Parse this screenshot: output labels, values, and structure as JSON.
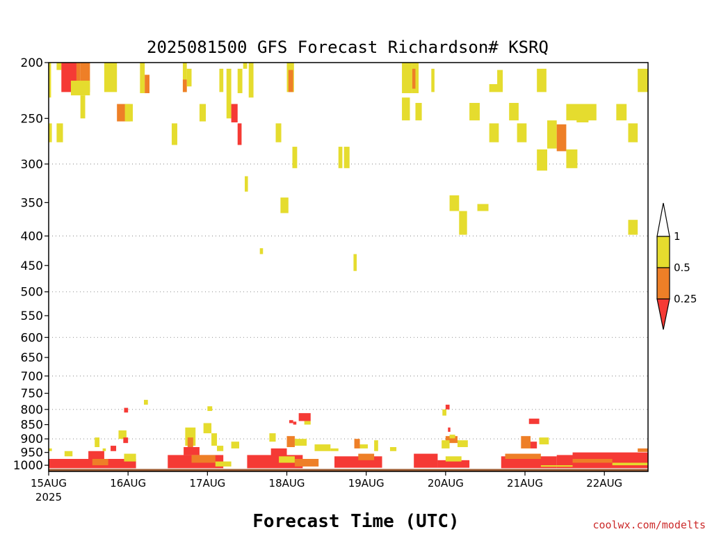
{
  "chart_data": {
    "type": "heatmap",
    "title": "2025081500 GFS Forecast Richardson# KSRQ",
    "xlabel": "Forecast Time (UTC)",
    "ylabel": "",
    "credit": "coolwx.com/modelts",
    "x_ticks": [
      {
        "day": 0,
        "label": "15AUG",
        "sublabel": "2025"
      },
      {
        "day": 1,
        "label": "16AUG",
        "sublabel": ""
      },
      {
        "day": 2,
        "label": "17AUG",
        "sublabel": ""
      },
      {
        "day": 3,
        "label": "18AUG",
        "sublabel": ""
      },
      {
        "day": 4,
        "label": "19AUG",
        "sublabel": ""
      },
      {
        "day": 5,
        "label": "20AUG",
        "sublabel": ""
      },
      {
        "day": 6,
        "label": "21AUG",
        "sublabel": ""
      },
      {
        "day": 7,
        "label": "22AUG",
        "sublabel": ""
      }
    ],
    "xlim_days": [
      0,
      7.55
    ],
    "y_scale": "log",
    "ylim_hpa": [
      200,
      1025
    ],
    "y_ticks": [
      "200",
      "250",
      "300",
      "350",
      "400",
      "450",
      "500",
      "550",
      "600",
      "650",
      "700",
      "750",
      "800",
      "850",
      "900",
      "950",
      "1000"
    ],
    "grid_levels": [
      300,
      400,
      500,
      600,
      700,
      800,
      900
    ],
    "grid": "dotted horizontal",
    "colorbar": {
      "placement": "right",
      "labels": [
        "1",
        "0.5",
        "0.25"
      ],
      "bins": [
        {
          "range": "0.5-1",
          "color": "#e5dc2e"
        },
        {
          "range": "0.25-0.5",
          "color": "#ee7f27"
        },
        {
          "range": "<0.25",
          "color": "#f53a35"
        }
      ]
    },
    "colors": {
      "yellow": "#e5dc2e",
      "orange": "#ee7f27",
      "red": "#f53a35",
      "ground": "#9b5a30"
    },
    "ground_level_hpa": 1015,
    "cells": [
      {
        "t0": 0.0,
        "t1": 0.03,
        "p0": 200,
        "p1": 230,
        "c": "yellow"
      },
      {
        "t0": 0.1,
        "t1": 0.16,
        "p0": 200,
        "p1": 206,
        "c": "yellow"
      },
      {
        "t0": 0.16,
        "t1": 0.35,
        "p0": 200,
        "p1": 225,
        "c": "red"
      },
      {
        "t0": 0.35,
        "t1": 0.4,
        "p0": 200,
        "p1": 225,
        "c": "orange"
      },
      {
        "t0": 0.4,
        "t1": 0.52,
        "p0": 200,
        "p1": 225,
        "c": "orange"
      },
      {
        "t0": 0.28,
        "t1": 0.52,
        "p0": 215,
        "p1": 228,
        "c": "yellow"
      },
      {
        "t0": 0.4,
        "t1": 0.46,
        "p0": 228,
        "p1": 250,
        "c": "yellow"
      },
      {
        "t0": 0.7,
        "t1": 0.86,
        "p0": 200,
        "p1": 225,
        "c": "yellow"
      },
      {
        "t0": 0.86,
        "t1": 1.03,
        "p0": 236,
        "p1": 253,
        "c": "orange"
      },
      {
        "t0": 0.96,
        "t1": 1.06,
        "p0": 236,
        "p1": 253,
        "c": "yellow"
      },
      {
        "t0": 1.15,
        "t1": 1.21,
        "p0": 200,
        "p1": 226,
        "c": "yellow"
      },
      {
        "t0": 1.21,
        "t1": 1.27,
        "p0": 210,
        "p1": 226,
        "c": "orange"
      },
      {
        "t0": 1.69,
        "t1": 1.74,
        "p0": 200,
        "p1": 225,
        "c": "yellow"
      },
      {
        "t0": 1.69,
        "t1": 1.74,
        "p0": 214,
        "p1": 225,
        "c": "orange"
      },
      {
        "t0": 1.74,
        "t1": 1.8,
        "p0": 205,
        "p1": 220,
        "c": "yellow"
      },
      {
        "t0": 1.9,
        "t1": 1.98,
        "p0": 236,
        "p1": 253,
        "c": "yellow"
      },
      {
        "t0": 2.15,
        "t1": 2.2,
        "p0": 205,
        "p1": 225,
        "c": "yellow"
      },
      {
        "t0": 2.24,
        "t1": 2.3,
        "p0": 205,
        "p1": 250,
        "c": "yellow"
      },
      {
        "t0": 2.3,
        "t1": 2.38,
        "p0": 236,
        "p1": 254,
        "c": "red"
      },
      {
        "t0": 2.38,
        "t1": 2.44,
        "p0": 205,
        "p1": 226,
        "c": "yellow"
      },
      {
        "t0": 2.45,
        "t1": 2.5,
        "p0": 200,
        "p1": 205,
        "c": "yellow"
      },
      {
        "t0": 2.38,
        "t1": 2.43,
        "p0": 255,
        "p1": 278,
        "c": "red"
      },
      {
        "t0": 2.52,
        "t1": 2.58,
        "p0": 200,
        "p1": 230,
        "c": "yellow"
      },
      {
        "t0": 3.0,
        "t1": 3.09,
        "p0": 200,
        "p1": 225,
        "c": "yellow"
      },
      {
        "t0": 3.02,
        "t1": 3.08,
        "p0": 206,
        "p1": 225,
        "c": "orange"
      },
      {
        "t0": 2.86,
        "t1": 2.93,
        "p0": 255,
        "p1": 275,
        "c": "yellow"
      },
      {
        "t0": 3.07,
        "t1": 3.13,
        "p0": 280,
        "p1": 305,
        "c": "yellow"
      },
      {
        "t0": 2.92,
        "t1": 3.02,
        "p0": 343,
        "p1": 365,
        "c": "yellow"
      },
      {
        "t0": 1.55,
        "t1": 1.62,
        "p0": 255,
        "p1": 278,
        "c": "yellow"
      },
      {
        "t0": 0.1,
        "t1": 0.18,
        "p0": 255,
        "p1": 275,
        "c": "yellow"
      },
      {
        "t0": 0.0,
        "t1": 0.04,
        "p0": 255,
        "p1": 275,
        "c": "yellow"
      },
      {
        "t0": 2.47,
        "t1": 2.51,
        "p0": 315,
        "p1": 335,
        "c": "yellow"
      },
      {
        "t0": 2.66,
        "t1": 2.7,
        "p0": 420,
        "p1": 430,
        "c": "yellow"
      },
      {
        "t0": 3.65,
        "t1": 3.7,
        "p0": 280,
        "p1": 305,
        "c": "yellow"
      },
      {
        "t0": 3.72,
        "t1": 3.79,
        "p0": 280,
        "p1": 305,
        "c": "yellow"
      },
      {
        "t0": 3.84,
        "t1": 3.88,
        "p0": 430,
        "p1": 460,
        "c": "yellow"
      },
      {
        "t0": 4.45,
        "t1": 4.58,
        "p0": 200,
        "p1": 226,
        "c": "yellow"
      },
      {
        "t0": 4.58,
        "t1": 4.66,
        "p0": 200,
        "p1": 226,
        "c": "yellow"
      },
      {
        "t0": 4.58,
        "t1": 4.62,
        "p0": 205,
        "p1": 222,
        "c": "orange"
      },
      {
        "t0": 4.45,
        "t1": 4.55,
        "p0": 230,
        "p1": 252,
        "c": "yellow"
      },
      {
        "t0": 4.62,
        "t1": 4.7,
        "p0": 235,
        "p1": 252,
        "c": "yellow"
      },
      {
        "t0": 4.82,
        "t1": 4.86,
        "p0": 205,
        "p1": 225,
        "c": "yellow"
      },
      {
        "t0": 5.05,
        "t1": 5.17,
        "p0": 340,
        "p1": 362,
        "c": "yellow"
      },
      {
        "t0": 5.17,
        "t1": 5.27,
        "p0": 362,
        "p1": 398,
        "c": "yellow"
      },
      {
        "t0": 5.4,
        "t1": 5.54,
        "p0": 352,
        "p1": 362,
        "c": "yellow"
      },
      {
        "t0": 5.3,
        "t1": 5.43,
        "p0": 235,
        "p1": 252,
        "c": "yellow"
      },
      {
        "t0": 5.55,
        "t1": 5.72,
        "p0": 218,
        "p1": 225,
        "c": "yellow"
      },
      {
        "t0": 5.65,
        "t1": 5.72,
        "p0": 206,
        "p1": 222,
        "c": "yellow"
      },
      {
        "t0": 5.55,
        "t1": 5.67,
        "p0": 255,
        "p1": 275,
        "c": "yellow"
      },
      {
        "t0": 5.8,
        "t1": 5.92,
        "p0": 235,
        "p1": 252,
        "c": "yellow"
      },
      {
        "t0": 5.9,
        "t1": 6.02,
        "p0": 255,
        "p1": 275,
        "c": "yellow"
      },
      {
        "t0": 6.15,
        "t1": 6.27,
        "p0": 205,
        "p1": 225,
        "c": "yellow"
      },
      {
        "t0": 6.15,
        "t1": 6.28,
        "p0": 283,
        "p1": 308,
        "c": "yellow"
      },
      {
        "t0": 6.28,
        "t1": 6.4,
        "p0": 252,
        "p1": 282,
        "c": "yellow"
      },
      {
        "t0": 6.4,
        "t1": 6.52,
        "p0": 256,
        "p1": 285,
        "c": "orange"
      },
      {
        "t0": 6.52,
        "t1": 6.66,
        "p0": 283,
        "p1": 305,
        "c": "yellow"
      },
      {
        "t0": 6.52,
        "t1": 6.9,
        "p0": 236,
        "p1": 252,
        "c": "yellow"
      },
      {
        "t0": 6.65,
        "t1": 6.8,
        "p0": 250,
        "p1": 254,
        "c": "yellow"
      },
      {
        "t0": 7.15,
        "t1": 7.28,
        "p0": 236,
        "p1": 252,
        "c": "yellow"
      },
      {
        "t0": 7.3,
        "t1": 7.42,
        "p0": 255,
        "p1": 275,
        "c": "yellow"
      },
      {
        "t0": 7.42,
        "t1": 7.55,
        "p0": 205,
        "p1": 225,
        "c": "yellow"
      },
      {
        "t0": 7.3,
        "t1": 7.42,
        "p0": 375,
        "p1": 398,
        "c": "yellow"
      },
      {
        "t0": 1.2,
        "t1": 1.25,
        "p0": 770,
        "p1": 785,
        "c": "yellow"
      },
      {
        "t0": 0.95,
        "t1": 1.0,
        "p0": 795,
        "p1": 810,
        "c": "red"
      },
      {
        "t0": 2.0,
        "t1": 2.06,
        "p0": 790,
        "p1": 805,
        "c": "yellow"
      },
      {
        "t0": 3.03,
        "t1": 3.08,
        "p0": 835,
        "p1": 845,
        "c": "red"
      },
      {
        "t0": 3.08,
        "t1": 3.12,
        "p0": 840,
        "p1": 850,
        "c": "red"
      },
      {
        "t0": 3.15,
        "t1": 3.3,
        "p0": 812,
        "p1": 838,
        "c": "red"
      },
      {
        "t0": 3.22,
        "t1": 3.3,
        "p0": 838,
        "p1": 850,
        "c": "yellow"
      },
      {
        "t0": 5.0,
        "t1": 5.05,
        "p0": 785,
        "p1": 800,
        "c": "red"
      },
      {
        "t0": 4.96,
        "t1": 5.01,
        "p0": 800,
        "p1": 820,
        "c": "yellow"
      },
      {
        "t0": 5.03,
        "t1": 5.06,
        "p0": 860,
        "p1": 875,
        "c": "red"
      },
      {
        "t0": 6.05,
        "t1": 6.18,
        "p0": 830,
        "p1": 848,
        "c": "red"
      },
      {
        "t0": 6.18,
        "t1": 6.3,
        "p0": 895,
        "p1": 920,
        "c": "yellow"
      },
      {
        "t0": 5.95,
        "t1": 6.07,
        "p0": 890,
        "p1": 935,
        "c": "orange"
      },
      {
        "t0": 6.07,
        "t1": 6.15,
        "p0": 910,
        "p1": 935,
        "c": "red"
      },
      {
        "t0": 5.0,
        "t1": 5.15,
        "p0": 890,
        "p1": 915,
        "c": "orange"
      },
      {
        "t0": 5.15,
        "t1": 5.28,
        "p0": 905,
        "p1": 930,
        "c": "yellow"
      },
      {
        "t0": 4.95,
        "t1": 5.05,
        "p0": 905,
        "p1": 935,
        "c": "yellow"
      },
      {
        "t0": 5.05,
        "t1": 5.12,
        "p0": 885,
        "p1": 898,
        "c": "yellow"
      },
      {
        "t0": 3.35,
        "t1": 3.55,
        "p0": 920,
        "p1": 945,
        "c": "yellow"
      },
      {
        "t0": 3.55,
        "t1": 3.65,
        "p0": 935,
        "p1": 945,
        "c": "yellow"
      },
      {
        "t0": 3.92,
        "t1": 4.02,
        "p0": 920,
        "p1": 935,
        "c": "yellow"
      },
      {
        "t0": 4.1,
        "t1": 4.15,
        "p0": 905,
        "p1": 945,
        "c": "yellow"
      },
      {
        "t0": 4.3,
        "t1": 4.38,
        "p0": 930,
        "p1": 945,
        "c": "yellow"
      },
      {
        "t0": 3.85,
        "t1": 3.92,
        "p0": 900,
        "p1": 935,
        "c": "orange"
      },
      {
        "t0": 3.1,
        "t1": 3.25,
        "p0": 900,
        "p1": 925,
        "c": "yellow"
      },
      {
        "t0": 3.0,
        "t1": 3.1,
        "p0": 890,
        "p1": 930,
        "c": "orange"
      },
      {
        "t0": 2.78,
        "t1": 2.86,
        "p0": 880,
        "p1": 910,
        "c": "yellow"
      },
      {
        "t0": 2.3,
        "t1": 2.4,
        "p0": 910,
        "p1": 935,
        "c": "yellow"
      },
      {
        "t0": 2.12,
        "t1": 2.2,
        "p0": 925,
        "p1": 945,
        "c": "yellow"
      },
      {
        "t0": 1.95,
        "t1": 2.05,
        "p0": 845,
        "p1": 880,
        "c": "yellow"
      },
      {
        "t0": 2.05,
        "t1": 2.12,
        "p0": 880,
        "p1": 925,
        "c": "yellow"
      },
      {
        "t0": 1.72,
        "t1": 1.85,
        "p0": 860,
        "p1": 925,
        "c": "yellow"
      },
      {
        "t0": 1.75,
        "t1": 1.82,
        "p0": 895,
        "p1": 935,
        "c": "orange"
      },
      {
        "t0": 0.88,
        "t1": 0.98,
        "p0": 870,
        "p1": 900,
        "c": "yellow"
      },
      {
        "t0": 0.94,
        "t1": 1.0,
        "p0": 895,
        "p1": 915,
        "c": "red"
      },
      {
        "t0": 0.58,
        "t1": 0.64,
        "p0": 895,
        "p1": 930,
        "c": "yellow"
      },
      {
        "t0": 0.68,
        "t1": 0.72,
        "p0": 935,
        "p1": 945,
        "c": "yellow"
      },
      {
        "t0": 0.78,
        "t1": 0.85,
        "p0": 925,
        "p1": 945,
        "c": "red"
      },
      {
        "t0": 0.0,
        "t1": 0.04,
        "p0": 935,
        "p1": 945,
        "c": "yellow"
      },
      {
        "t0": 0.2,
        "t1": 0.3,
        "p0": 945,
        "p1": 965,
        "c": "yellow"
      },
      {
        "t0": 0.0,
        "t1": 1.1,
        "p0": 975,
        "p1": 1012,
        "c": "red"
      },
      {
        "t0": 0.5,
        "t1": 0.7,
        "p0": 945,
        "p1": 975,
        "c": "red"
      },
      {
        "t0": 0.55,
        "t1": 0.75,
        "p0": 975,
        "p1": 1000,
        "c": "orange"
      },
      {
        "t0": 0.95,
        "t1": 1.1,
        "p0": 955,
        "p1": 985,
        "c": "yellow"
      },
      {
        "t0": 1.5,
        "t1": 2.2,
        "p0": 960,
        "p1": 1012,
        "c": "red"
      },
      {
        "t0": 1.7,
        "t1": 1.9,
        "p0": 930,
        "p1": 960,
        "c": "red"
      },
      {
        "t0": 1.8,
        "t1": 2.1,
        "p0": 960,
        "p1": 990,
        "c": "orange"
      },
      {
        "t0": 2.1,
        "t1": 2.3,
        "p0": 985,
        "p1": 1005,
        "c": "yellow"
      },
      {
        "t0": 2.5,
        "t1": 3.2,
        "p0": 960,
        "p1": 1012,
        "c": "red"
      },
      {
        "t0": 2.8,
        "t1": 3.0,
        "p0": 935,
        "p1": 965,
        "c": "red"
      },
      {
        "t0": 2.9,
        "t1": 3.1,
        "p0": 965,
        "p1": 990,
        "c": "yellow"
      },
      {
        "t0": 3.1,
        "t1": 3.4,
        "p0": 975,
        "p1": 1005,
        "c": "orange"
      },
      {
        "t0": 3.6,
        "t1": 4.2,
        "p0": 965,
        "p1": 1010,
        "c": "red"
      },
      {
        "t0": 3.9,
        "t1": 4.1,
        "p0": 955,
        "p1": 980,
        "c": "orange"
      },
      {
        "t0": 4.6,
        "t1": 4.9,
        "p0": 955,
        "p1": 1010,
        "c": "red"
      },
      {
        "t0": 4.9,
        "t1": 5.3,
        "p0": 980,
        "p1": 1010,
        "c": "red"
      },
      {
        "t0": 5.0,
        "t1": 5.2,
        "p0": 965,
        "p1": 985,
        "c": "yellow"
      },
      {
        "t0": 5.7,
        "t1": 6.4,
        "p0": 965,
        "p1": 1012,
        "c": "red"
      },
      {
        "t0": 5.75,
        "t1": 6.2,
        "p0": 955,
        "p1": 975,
        "c": "orange"
      },
      {
        "t0": 6.4,
        "t1": 7.55,
        "p0": 960,
        "p1": 1012,
        "c": "red"
      },
      {
        "t0": 6.6,
        "t1": 7.55,
        "p0": 950,
        "p1": 970,
        "c": "red"
      },
      {
        "t0": 6.6,
        "t1": 7.1,
        "p0": 975,
        "p1": 990,
        "c": "orange"
      },
      {
        "t0": 7.1,
        "t1": 7.55,
        "p0": 990,
        "p1": 1000,
        "c": "yellow"
      },
      {
        "t0": 6.2,
        "t1": 6.6,
        "p0": 1000,
        "p1": 1006,
        "c": "yellow"
      },
      {
        "t0": 7.42,
        "t1": 7.55,
        "p0": 935,
        "p1": 948,
        "c": "orange"
      }
    ]
  }
}
